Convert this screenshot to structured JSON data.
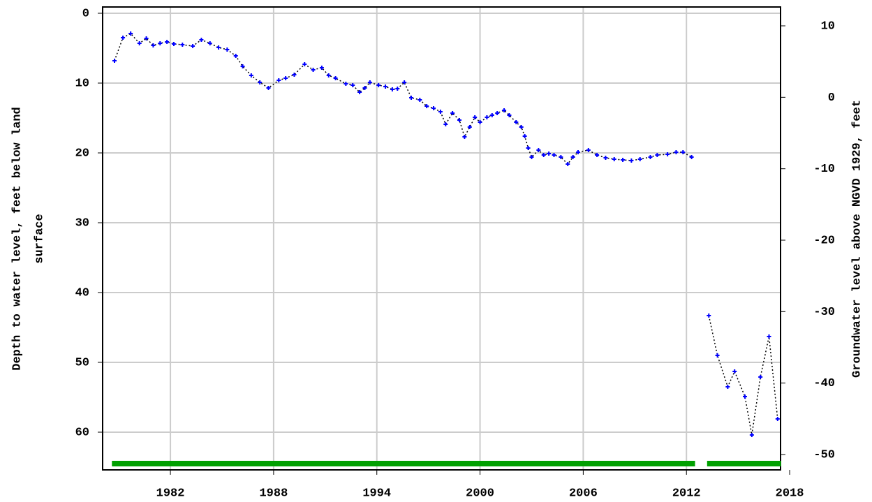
{
  "chart_data": {
    "type": "line",
    "ylabel": [
      "Depth to water level, feet below land",
      "surface"
    ],
    "y2label": "Groundwater level above NGVD 1929, feet",
    "x": [
      1978.75,
      1979.24,
      1979.69,
      1980.2,
      1980.6,
      1981.0,
      1981.4,
      1981.8,
      1982.2,
      1982.7,
      1983.3,
      1983.8,
      1984.3,
      1984.8,
      1985.3,
      1985.8,
      1986.2,
      1986.7,
      1987.2,
      1987.7,
      1988.3,
      1988.7,
      1989.2,
      1989.8,
      1990.3,
      1990.8,
      1991.2,
      1991.6,
      1992.2,
      1992.6,
      1993.0,
      1993.3,
      1993.6,
      1994.1,
      1994.5,
      1994.9,
      1995.2,
      1995.6,
      1996.0,
      1996.5,
      1996.9,
      1997.3,
      1997.7,
      1998.0,
      1998.4,
      1998.8,
      1999.1,
      1999.4,
      1999.7,
      2000.0,
      2000.4,
      2000.7,
      2001.0,
      2001.4,
      2001.7,
      2002.1,
      2002.4,
      2002.6,
      2002.8,
      2003.0,
      2003.4,
      2003.7,
      2004.0,
      2004.3,
      2004.7,
      2005.1,
      2005.4,
      2005.7,
      2006.3,
      2006.8,
      2007.3,
      2007.8,
      2008.3,
      2008.8,
      2009.3,
      2009.9,
      2010.3,
      2010.9,
      2011.4,
      2011.8,
      2012.3,
      2012.9,
      2013.3,
      2013.8,
      2014.4,
      2014.8,
      2015.4,
      2015.8,
      2016.3,
      2016.8,
      2017.3
    ],
    "series": [
      {
        "color": "#0000ff",
        "line_color": "#000000",
        "values": [
          6.8,
          3.5,
          2.9,
          4.3,
          3.6,
          4.6,
          4.3,
          4.1,
          4.4,
          4.5,
          4.7,
          3.8,
          4.3,
          4.9,
          5.2,
          6.1,
          7.6,
          8.9,
          9.9,
          10.7,
          9.6,
          9.3,
          8.8,
          7.3,
          8.1,
          7.8,
          8.9,
          9.3,
          10.1,
          10.3,
          11.3,
          10.7,
          9.9,
          10.3,
          10.5,
          10.9,
          10.8,
          9.9,
          12.1,
          12.4,
          13.3,
          13.6,
          14.1,
          15.9,
          14.3,
          15.3,
          17.7,
          16.3,
          14.9,
          15.6,
          14.9,
          14.6,
          14.3,
          13.9,
          14.6,
          15.6,
          16.3,
          17.6,
          19.3,
          20.6,
          19.6,
          20.3,
          20.1,
          20.3,
          20.6,
          21.6,
          20.6,
          19.9,
          19.6,
          20.3,
          20.7,
          20.9,
          21.0,
          21.1,
          20.9,
          20.6,
          20.3,
          20.2,
          19.9,
          19.9,
          20.6,
          null,
          43.3,
          49.0,
          53.5,
          51.3,
          54.9,
          60.4,
          52.1,
          46.3,
          58.1
        ]
      }
    ],
    "periods": [
      [
        1978.6,
        2012.5
      ],
      [
        2013.2,
        2017.5
      ]
    ],
    "period_color": "#00a000",
    "xlim": [
      1978.06,
      2017.47
    ],
    "xticks": [
      1982,
      1988,
      1994,
      2000,
      2006,
      2012,
      2018
    ],
    "ylim": [
      -0.9,
      65.4
    ],
    "yticks": [
      0,
      10,
      20,
      30,
      40,
      50,
      60
    ],
    "y2lim": [
      12.64,
      -52.15
    ],
    "y2ticks": [
      10,
      0,
      -10,
      -20,
      -30,
      -40,
      -50
    ],
    "grid": true
  }
}
